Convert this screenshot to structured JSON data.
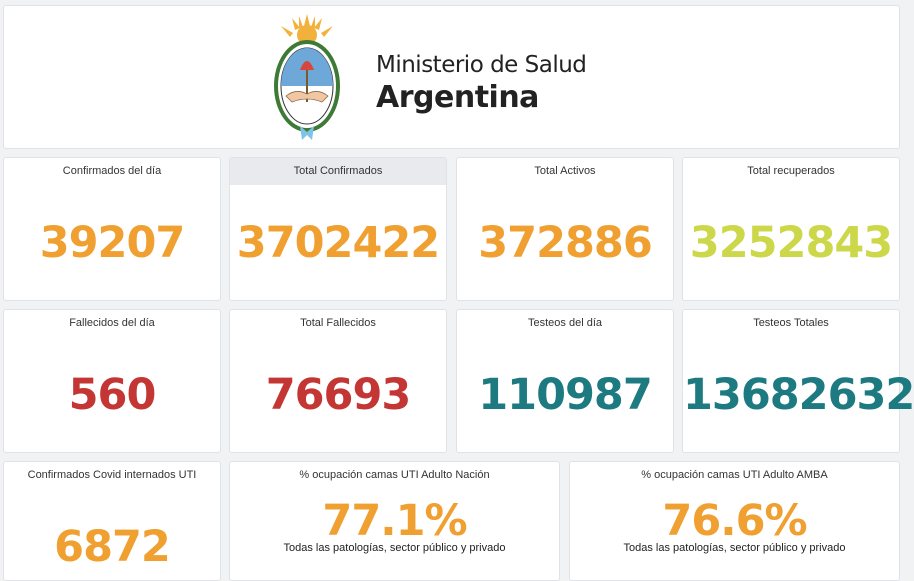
{
  "header": {
    "ministry": "Ministerio de Salud",
    "country": "Argentina",
    "logo_icon": "argentina-coat-of-arms-icon"
  },
  "colors": {
    "orange": "#f0a030",
    "yellow_green": "#ccd84a",
    "red": "#c33634",
    "teal": "#1d7a80"
  },
  "row1": [
    {
      "label": "Confirmados del día",
      "value": "39207"
    },
    {
      "label": "Total Confirmados",
      "value": "3702422"
    },
    {
      "label": "Total Activos",
      "value": "372886"
    },
    {
      "label": "Total recuperados",
      "value": "3252843"
    }
  ],
  "row2": [
    {
      "label": "Fallecidos del día",
      "value": "560"
    },
    {
      "label": "Total Fallecidos",
      "value": "76693"
    },
    {
      "label": "Testeos del día",
      "value": "110987"
    },
    {
      "label": "Testeos Totales",
      "value": "13682632"
    }
  ],
  "row3": [
    {
      "label": "Confirmados Covid internados UTI",
      "value": "6872"
    },
    {
      "label": "% ocupación camas UTI Adulto Nación",
      "value": "77.1%",
      "note": "Todas las patologías, sector público y privado"
    },
    {
      "label": "% ocupación camas UTI Adulto AMBA",
      "value": "76.6%",
      "note": "Todas las patologías, sector público y privado"
    }
  ]
}
